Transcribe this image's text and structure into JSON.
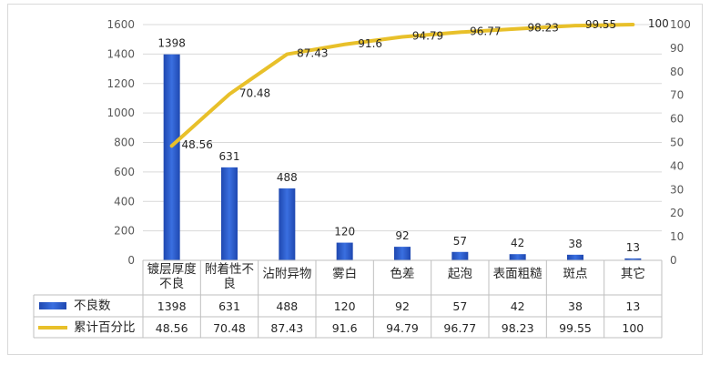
{
  "chart_data": {
    "type": "bar+line",
    "categories": [
      "镀层厚度不良",
      "附着性不良",
      "沾附异物",
      "雾白",
      "色差",
      "起泡",
      "表面粗糙",
      "斑点",
      "其它"
    ],
    "categories_display": [
      [
        "镀层厚度",
        "不良"
      ],
      [
        "附着性不",
        "良"
      ],
      [
        "沾附异物"
      ],
      [
        "雾白"
      ],
      [
        "色差"
      ],
      [
        "起泡"
      ],
      [
        "表面粗糙"
      ],
      [
        "斑点"
      ],
      [
        "其它"
      ]
    ],
    "series": [
      {
        "name": "不良数",
        "type": "bar",
        "axis": "left",
        "values": [
          1398,
          631,
          488,
          120,
          92,
          57,
          42,
          38,
          13
        ],
        "color": "#2e5cc7"
      },
      {
        "name": "累计百分比",
        "type": "line",
        "axis": "right",
        "values": [
          48.56,
          70.48,
          87.43,
          91.6,
          94.79,
          96.77,
          98.23,
          99.55,
          100
        ],
        "color": "#e8c02a"
      }
    ],
    "y_left": {
      "ylim": [
        0,
        1600
      ],
      "ticks": [
        0,
        200,
        400,
        600,
        800,
        1000,
        1200,
        1400,
        1600
      ]
    },
    "y_right": {
      "ylim": [
        0,
        100
      ],
      "ticks": [
        0,
        10,
        20,
        30,
        40,
        50,
        60,
        70,
        80,
        90,
        100
      ]
    },
    "data_table": true,
    "grid": "horizontal",
    "legend": "data-table"
  }
}
